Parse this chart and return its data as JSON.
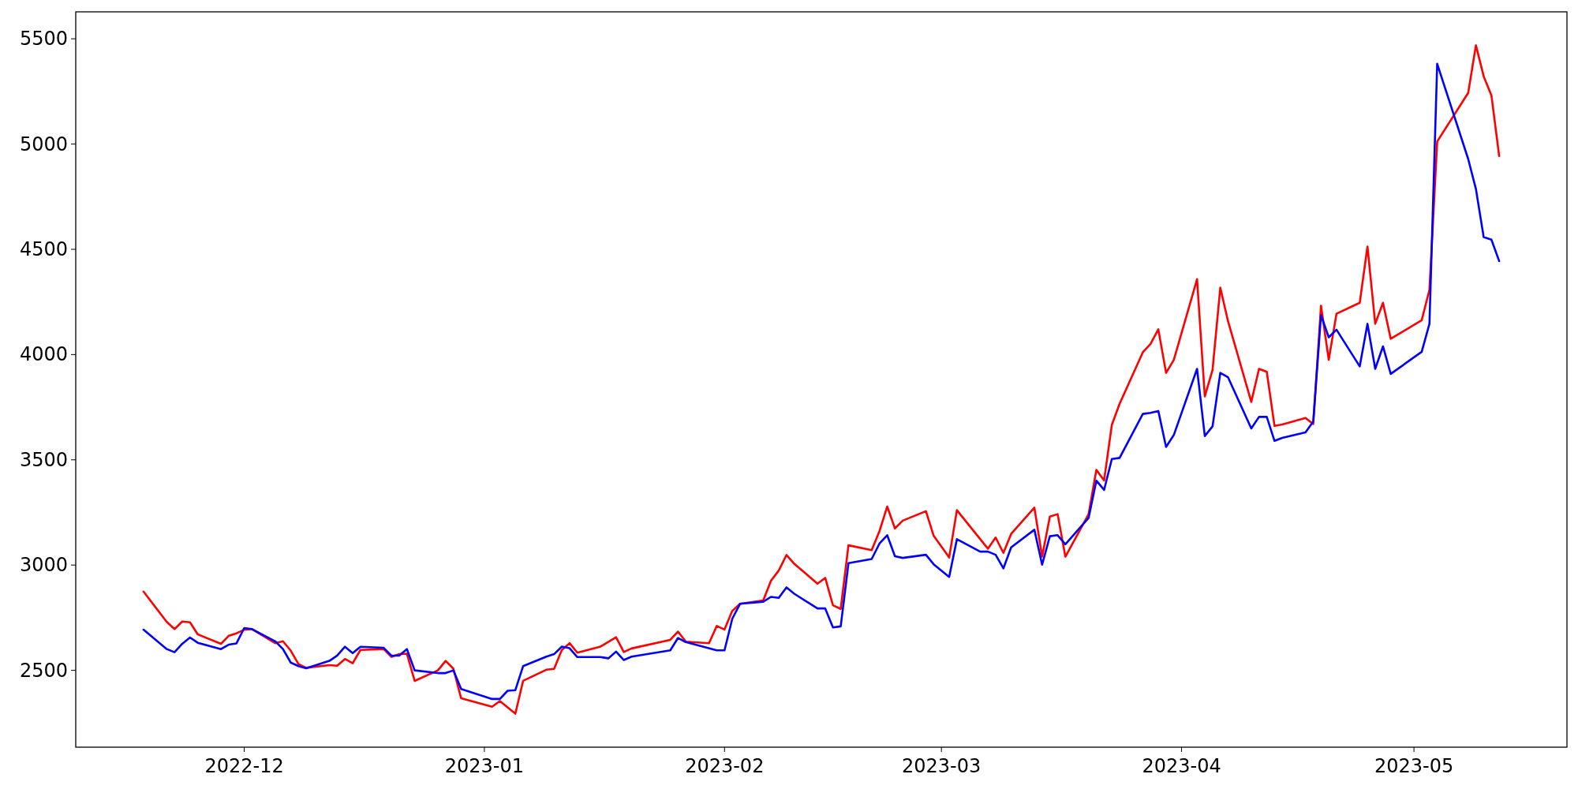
{
  "chart_data": {
    "type": "line",
    "xlim": [
      "2022-11-09T06:00",
      "2023-05-20T18:00"
    ],
    "ylim": [
      2135,
      5628
    ],
    "xticks": [
      "2022-12",
      "2023-01",
      "2023-02",
      "2023-03",
      "2023-04",
      "2023-05"
    ],
    "yticks": [
      2500,
      3000,
      3500,
      4000,
      4500,
      5000,
      5500
    ],
    "grid": false,
    "marker": "none",
    "line_style": "solid",
    "series": [
      {
        "color": "#ff0000",
        "x": [
          "2022-11-18",
          "2022-11-21",
          "2022-11-22",
          "2022-11-23",
          "2022-11-24",
          "2022-11-25",
          "2022-11-28",
          "2022-11-29",
          "2022-11-30",
          "2022-12-01",
          "2022-12-02",
          "2022-12-05",
          "2022-12-06",
          "2022-12-07",
          "2022-12-08",
          "2022-12-09",
          "2022-12-12",
          "2022-12-13",
          "2022-12-14",
          "2022-12-15",
          "2022-12-16",
          "2022-12-19",
          "2022-12-20",
          "2022-12-21",
          "2022-12-22",
          "2022-12-23",
          "2022-12-26",
          "2022-12-27",
          "2022-12-28",
          "2022-12-29",
          "2023-01-02",
          "2023-01-03",
          "2023-01-05",
          "2023-01-06",
          "2023-01-09",
          "2023-01-10",
          "2023-01-11",
          "2023-01-12",
          "2023-01-13",
          "2023-01-16",
          "2023-01-18",
          "2023-01-19",
          "2023-01-20",
          "2023-01-25",
          "2023-01-26",
          "2023-01-27",
          "2023-01-30",
          "2023-01-31",
          "2023-02-01",
          "2023-02-02",
          "2023-02-03",
          "2023-02-06",
          "2023-02-07",
          "2023-02-08",
          "2023-02-09",
          "2023-02-10",
          "2023-02-13",
          "2023-02-14",
          "2023-02-15",
          "2023-02-16",
          "2023-02-17",
          "2023-02-20",
          "2023-02-21",
          "2023-02-22",
          "2023-02-23",
          "2023-02-24",
          "2023-02-27",
          "2023-02-28",
          "2023-03-02",
          "2023-03-03",
          "2023-03-07",
          "2023-03-08",
          "2023-03-09",
          "2023-03-10",
          "2023-03-13",
          "2023-03-14",
          "2023-03-15",
          "2023-03-16",
          "2023-03-17",
          "2023-03-20",
          "2023-03-21",
          "2023-03-22",
          "2023-03-23",
          "2023-03-24",
          "2023-03-27",
          "2023-03-28",
          "2023-03-29",
          "2023-03-30",
          "2023-03-31",
          "2023-04-03",
          "2023-04-04",
          "2023-04-05",
          "2023-04-06",
          "2023-04-07",
          "2023-04-10",
          "2023-04-11",
          "2023-04-12",
          "2023-04-13",
          "2023-04-14",
          "2023-04-17",
          "2023-04-18",
          "2023-04-19",
          "2023-04-20",
          "2023-04-21",
          "2023-04-24",
          "2023-04-25",
          "2023-04-26",
          "2023-04-27",
          "2023-04-28",
          "2023-05-02",
          "2023-05-03",
          "2023-05-04",
          "2023-05-08",
          "2023-05-09",
          "2023-05-10",
          "2023-05-11",
          "2023-05-12"
        ],
        "values": [
          2874,
          2730,
          2696,
          2732,
          2728,
          2671,
          2626,
          2664,
          2676,
          2693,
          2696,
          2629,
          2638,
          2594,
          2530,
          2512,
          2525,
          2522,
          2554,
          2534,
          2597,
          2601,
          2564,
          2577,
          2579,
          2450,
          2500,
          2545,
          2508,
          2367,
          2327,
          2354,
          2294,
          2450,
          2503,
          2507,
          2597,
          2629,
          2584,
          2613,
          2657,
          2587,
          2604,
          2645,
          2684,
          2636,
          2629,
          2711,
          2694,
          2782,
          2816,
          2832,
          2926,
          2974,
          3048,
          3006,
          2912,
          2939,
          2809,
          2792,
          3094,
          3071,
          3161,
          3278,
          3174,
          3211,
          3256,
          3139,
          3036,
          3261,
          3078,
          3131,
          3058,
          3148,
          3273,
          3040,
          3230,
          3242,
          3040,
          3242,
          3452,
          3402,
          3666,
          3766,
          4011,
          4051,
          4120,
          3913,
          3975,
          4358,
          3801,
          3927,
          4318,
          4158,
          3775,
          3932,
          3918,
          3661,
          3668,
          3699,
          3670,
          4232,
          3975,
          4194,
          4246,
          4513,
          4146,
          4246,
          4075,
          4163,
          4308,
          5012,
          5243,
          5469,
          5322,
          5231,
          4943
        ]
      },
      {
        "color": "#0000ff",
        "x": [
          "2022-11-18",
          "2022-11-21",
          "2022-11-22",
          "2022-11-23",
          "2022-11-24",
          "2022-11-25",
          "2022-11-28",
          "2022-11-29",
          "2022-11-30",
          "2022-12-01",
          "2022-12-02",
          "2022-12-05",
          "2022-12-06",
          "2022-12-07",
          "2022-12-08",
          "2022-12-09",
          "2022-12-12",
          "2022-12-13",
          "2022-12-14",
          "2022-12-15",
          "2022-12-16",
          "2022-12-19",
          "2022-12-20",
          "2022-12-21",
          "2022-12-22",
          "2022-12-23",
          "2022-12-26",
          "2022-12-27",
          "2022-12-28",
          "2022-12-29",
          "2023-01-02",
          "2023-01-03",
          "2023-01-04",
          "2023-01-05",
          "2023-01-06",
          "2023-01-09",
          "2023-01-10",
          "2023-01-11",
          "2023-01-12",
          "2023-01-13",
          "2023-01-16",
          "2023-01-17",
          "2023-01-18",
          "2023-01-19",
          "2023-01-20",
          "2023-01-25",
          "2023-01-26",
          "2023-01-27",
          "2023-01-31",
          "2023-02-01",
          "2023-02-02",
          "2023-02-03",
          "2023-02-06",
          "2023-02-07",
          "2023-02-08",
          "2023-02-09",
          "2023-02-10",
          "2023-02-13",
          "2023-02-14",
          "2023-02-15",
          "2023-02-16",
          "2023-02-17",
          "2023-02-20",
          "2023-02-21",
          "2023-02-22",
          "2023-02-23",
          "2023-02-24",
          "2023-02-27",
          "2023-02-28",
          "2023-03-02",
          "2023-03-03",
          "2023-03-06",
          "2023-03-07",
          "2023-03-08",
          "2023-03-09",
          "2023-03-10",
          "2023-03-13",
          "2023-03-14",
          "2023-03-15",
          "2023-03-16",
          "2023-03-17",
          "2023-03-20",
          "2023-03-21",
          "2023-03-22",
          "2023-03-23",
          "2023-03-24",
          "2023-03-27",
          "2023-03-28",
          "2023-03-29",
          "2023-03-30",
          "2023-03-31",
          "2023-04-03",
          "2023-04-04",
          "2023-04-05",
          "2023-04-06",
          "2023-04-07",
          "2023-04-10",
          "2023-04-11",
          "2023-04-12",
          "2023-04-13",
          "2023-04-14",
          "2023-04-17",
          "2023-04-18",
          "2023-04-19",
          "2023-04-20",
          "2023-04-21",
          "2023-04-24",
          "2023-04-25",
          "2023-04-26",
          "2023-04-27",
          "2023-04-28",
          "2023-05-02",
          "2023-05-03",
          "2023-05-04",
          "2023-05-08",
          "2023-05-09",
          "2023-05-10",
          "2023-05-11",
          "2023-05-12"
        ],
        "values": [
          2693,
          2601,
          2586,
          2626,
          2656,
          2631,
          2601,
          2622,
          2628,
          2701,
          2696,
          2638,
          2601,
          2537,
          2520,
          2510,
          2545,
          2570,
          2612,
          2582,
          2612,
          2607,
          2570,
          2570,
          2601,
          2500,
          2487,
          2487,
          2500,
          2411,
          2364,
          2364,
          2403,
          2406,
          2520,
          2565,
          2577,
          2613,
          2605,
          2563,
          2563,
          2557,
          2589,
          2549,
          2565,
          2595,
          2654,
          2634,
          2595,
          2595,
          2745,
          2816,
          2826,
          2849,
          2844,
          2894,
          2864,
          2794,
          2794,
          2704,
          2709,
          3009,
          3029,
          3102,
          3142,
          3042,
          3034,
          3049,
          3004,
          2944,
          3123,
          3064,
          3064,
          3049,
          2984,
          3084,
          3168,
          3002,
          3137,
          3142,
          3099,
          3224,
          3401,
          3357,
          3504,
          3509,
          3718,
          3723,
          3732,
          3561,
          3618,
          3932,
          3613,
          3659,
          3913,
          3892,
          3649,
          3704,
          3704,
          3590,
          3604,
          3630,
          3682,
          4187,
          4082,
          4118,
          3944,
          4146,
          3932,
          4039,
          3908,
          4013,
          4146,
          5381,
          4929,
          4786,
          4558,
          4546,
          4444
        ]
      }
    ]
  }
}
